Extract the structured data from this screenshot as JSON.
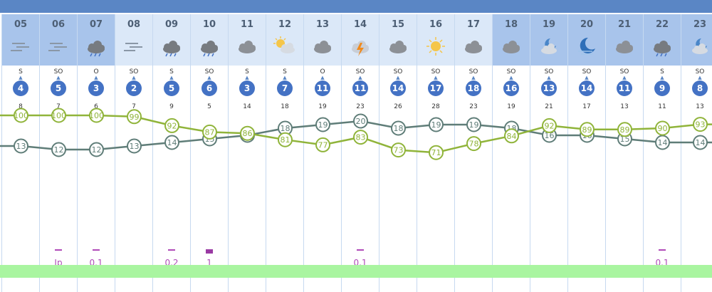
{
  "hours": [
    {
      "hour": "05",
      "icon": "fog-icon",
      "wind_dir": "S",
      "wind": "4",
      "gust": "8",
      "temp": "13",
      "humidity": "100",
      "precip": "",
      "prob": "",
      "night": true
    },
    {
      "hour": "06",
      "icon": "fog-icon",
      "wind_dir": "SO",
      "wind": "5",
      "gust": "7",
      "temp": "12",
      "humidity": "100",
      "precip": "Ip",
      "prob": "☂",
      "night": true
    },
    {
      "hour": "07",
      "icon": "rain-cloud-icon",
      "wind_dir": "O",
      "wind": "3",
      "gust": "6",
      "temp": "12",
      "humidity": "100",
      "precip": "0.1",
      "prob": "☂",
      "night": true
    },
    {
      "hour": "08",
      "icon": "fog-icon",
      "wind_dir": "SO",
      "wind": "2",
      "gust": "7",
      "temp": "13",
      "humidity": "99",
      "precip": "",
      "prob": "",
      "night": false
    },
    {
      "hour": "09",
      "icon": "rain-cloud-icon",
      "wind_dir": "S",
      "wind": "5",
      "gust": "9",
      "temp": "14",
      "humidity": "92",
      "precip": "0.2",
      "prob": "☂",
      "night": false
    },
    {
      "hour": "10",
      "icon": "rain-cloud-icon",
      "wind_dir": "SO",
      "wind": "6",
      "gust": "5",
      "temp": "15",
      "humidity": "87",
      "precip": "1",
      "prob": "☂",
      "night": false
    },
    {
      "hour": "11",
      "icon": "cloud-icon",
      "wind_dir": "S",
      "wind": "3",
      "gust": "14",
      "temp": "16",
      "humidity": "86",
      "precip": "",
      "prob": "",
      "night": false
    },
    {
      "hour": "12",
      "icon": "sun-cloud-icon",
      "wind_dir": "S",
      "wind": "7",
      "gust": "18",
      "temp": "18",
      "humidity": "81",
      "precip": "",
      "prob": "",
      "night": false
    },
    {
      "hour": "13",
      "icon": "cloud-icon",
      "wind_dir": "O",
      "wind": "11",
      "gust": "19",
      "temp": "19",
      "humidity": "77",
      "precip": "",
      "prob": "",
      "night": false
    },
    {
      "hour": "14",
      "icon": "thunder-icon",
      "wind_dir": "SO",
      "wind": "11",
      "gust": "23",
      "temp": "20",
      "humidity": "83",
      "precip": "0.1",
      "prob": "☂",
      "night": false
    },
    {
      "hour": "15",
      "icon": "cloud-icon",
      "wind_dir": "SO",
      "wind": "14",
      "gust": "26",
      "temp": "18",
      "humidity": "73",
      "precip": "",
      "prob": "",
      "night": false
    },
    {
      "hour": "16",
      "icon": "sun-icon",
      "wind_dir": "SO",
      "wind": "17",
      "gust": "28",
      "temp": "19",
      "humidity": "71",
      "precip": "",
      "prob": "",
      "night": false
    },
    {
      "hour": "17",
      "icon": "cloud-icon",
      "wind_dir": "SO",
      "wind": "18",
      "gust": "23",
      "temp": "19",
      "humidity": "78",
      "precip": "",
      "prob": "",
      "night": false
    },
    {
      "hour": "18",
      "icon": "cloud-icon",
      "wind_dir": "SO",
      "wind": "16",
      "gust": "19",
      "temp": "18",
      "humidity": "84",
      "precip": "",
      "prob": "",
      "night": true
    },
    {
      "hour": "19",
      "icon": "moon-cloud-icon",
      "wind_dir": "SO",
      "wind": "13",
      "gust": "21",
      "temp": "16",
      "humidity": "92",
      "precip": "",
      "prob": "",
      "night": true
    },
    {
      "hour": "20",
      "icon": "moon-icon",
      "wind_dir": "SO",
      "wind": "14",
      "gust": "17",
      "temp": "16",
      "humidity": "89",
      "precip": "",
      "prob": "",
      "night": true
    },
    {
      "hour": "21",
      "icon": "cloud-icon",
      "wind_dir": "SO",
      "wind": "11",
      "gust": "13",
      "temp": "15",
      "humidity": "89",
      "precip": "",
      "prob": "",
      "night": true
    },
    {
      "hour": "22",
      "icon": "rain-cloud-icon",
      "wind_dir": "S",
      "wind": "9",
      "gust": "11",
      "temp": "14",
      "humidity": "90",
      "precip": "0.1",
      "prob": "☂",
      "night": true
    },
    {
      "hour": "23",
      "icon": "moon-cloud-icon",
      "wind_dir": "SO",
      "wind": "8",
      "gust": "13",
      "temp": "14",
      "humidity": "93",
      "precip": "",
      "prob": "",
      "night": true
    }
  ],
  "colors": {
    "temp_line": "#5f7d78",
    "humidity_line": "#90b43a",
    "wind_circle": "#4472c4",
    "header_day": "#dbe8f8",
    "header_night": "#a8c4eb",
    "precip": "#b04ab8",
    "footer": "#a9f5a0"
  }
}
